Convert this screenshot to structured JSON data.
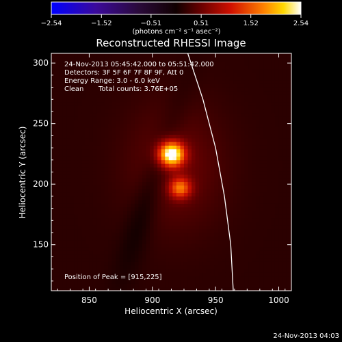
{
  "chart_data": {
    "type": "heatmap",
    "title": "Reconstructed RHESSI Image",
    "xlabel": "Heliocentric X (arcsec)",
    "ylabel": "Heliocentric Y (arcsec)",
    "xlim": [
      820,
      1010
    ],
    "ylim": [
      112,
      308
    ],
    "x_ticks": [
      850,
      900,
      950,
      1000
    ],
    "y_ticks": [
      150,
      200,
      250,
      300
    ],
    "colorbar": {
      "min": -2.54,
      "max": 2.54,
      "tick_values": [
        -2.54,
        -1.52,
        -0.51,
        0.51,
        1.52,
        2.54
      ],
      "tick_labels": [
        "−2.54",
        "−1.52",
        "−0.51",
        "0.51",
        "1.52",
        "2.54"
      ],
      "unit_label": "(photons cm⁻² s⁻¹ asec⁻²)",
      "colormap": "blue-black-red-yellow-white"
    },
    "sources": [
      {
        "x": 915,
        "y": 225,
        "amplitude": 2.54,
        "sigma": 7
      },
      {
        "x": 922,
        "y": 197,
        "amplitude": 1.3,
        "sigma": 6
      }
    ],
    "limb": [
      [
        928,
        308
      ],
      [
        940,
        270
      ],
      [
        950,
        230
      ],
      [
        957,
        190
      ],
      [
        962,
        150
      ],
      [
        964,
        112
      ]
    ],
    "annotations": {
      "time_range": "24-Nov-2013 05:45:42.000 to 05:51:42.000",
      "detectors": "Detectors: 3F 5F 6F 7F 8F 9F, Att 0",
      "energy": "Energy Range: 3.0 - 6.0 keV",
      "method": "Clean",
      "counts": "Total counts: 3.76E+05",
      "peak": "Position of Peak = [915,225]"
    }
  },
  "footer_timestamp": "24-Nov-2013 04:03",
  "colors": {
    "background": "#000000",
    "text": "#ffffff",
    "limb": "#ffffff"
  }
}
